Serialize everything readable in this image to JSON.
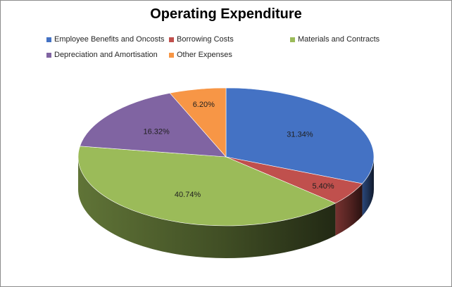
{
  "chart_data": {
    "type": "pie",
    "title": "Operating Expenditure",
    "slices": [
      {
        "name": "Employee Benefits and Oncosts",
        "value": 31.34,
        "label": "31.34%",
        "color": "#4472C4"
      },
      {
        "name": "Borrowing Costs",
        "value": 5.4,
        "label": "5.40%",
        "color": "#C0504D"
      },
      {
        "name": "Materials and Contracts",
        "value": 40.74,
        "label": "40.74%",
        "color": "#9BBB59"
      },
      {
        "name": "Depreciation and Amortisation",
        "value": 16.32,
        "label": "16.32%",
        "color": "#8064A2"
      },
      {
        "name": "Other Expenses",
        "value": 6.2,
        "label": "6.20%",
        "color": "#F79646"
      }
    ],
    "legend_position": "top",
    "style": "3d"
  }
}
